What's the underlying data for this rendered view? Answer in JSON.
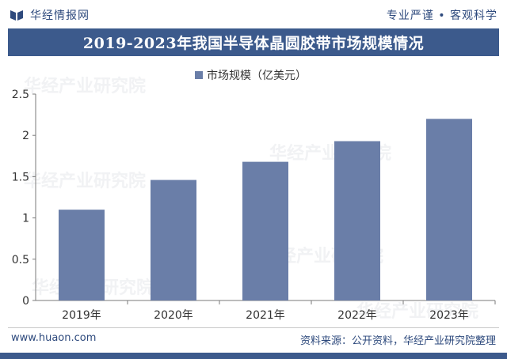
{
  "header": {
    "brand": "华经情报网",
    "slogan": "专业严谨 • 客观科学"
  },
  "title": "2019-2023年我国半导体晶圆胶带市场规模情况",
  "chart_data": {
    "type": "bar",
    "categories": [
      "2019年",
      "2020年",
      "2021年",
      "2022年",
      "2023年"
    ],
    "series": [
      {
        "name": "市场规模（亿美元）",
        "values": [
          1.1,
          1.46,
          1.68,
          1.93,
          2.2
        ]
      }
    ],
    "legend_label": "市场规模（亿美元）",
    "legend_position": "top-center",
    "ylim": [
      0,
      2.5
    ],
    "yticks": [
      "0",
      "0.5",
      "1",
      "1.5",
      "2",
      "2.5"
    ],
    "ytick_values": [
      0,
      0.5,
      1,
      1.5,
      2,
      2.5
    ],
    "grid": false,
    "colors": {
      "bar": "#6a7ea8",
      "axis": "#7a7a7a",
      "title_bg": "#3c5a8c",
      "brand": "#2e4a7d"
    }
  },
  "footer": {
    "website": "www.huaon.com",
    "source": "资料来源：公开资料，华经产业研究院整理"
  },
  "watermarks": [
    "华经产业研究院",
    "www.huaon.com"
  ]
}
